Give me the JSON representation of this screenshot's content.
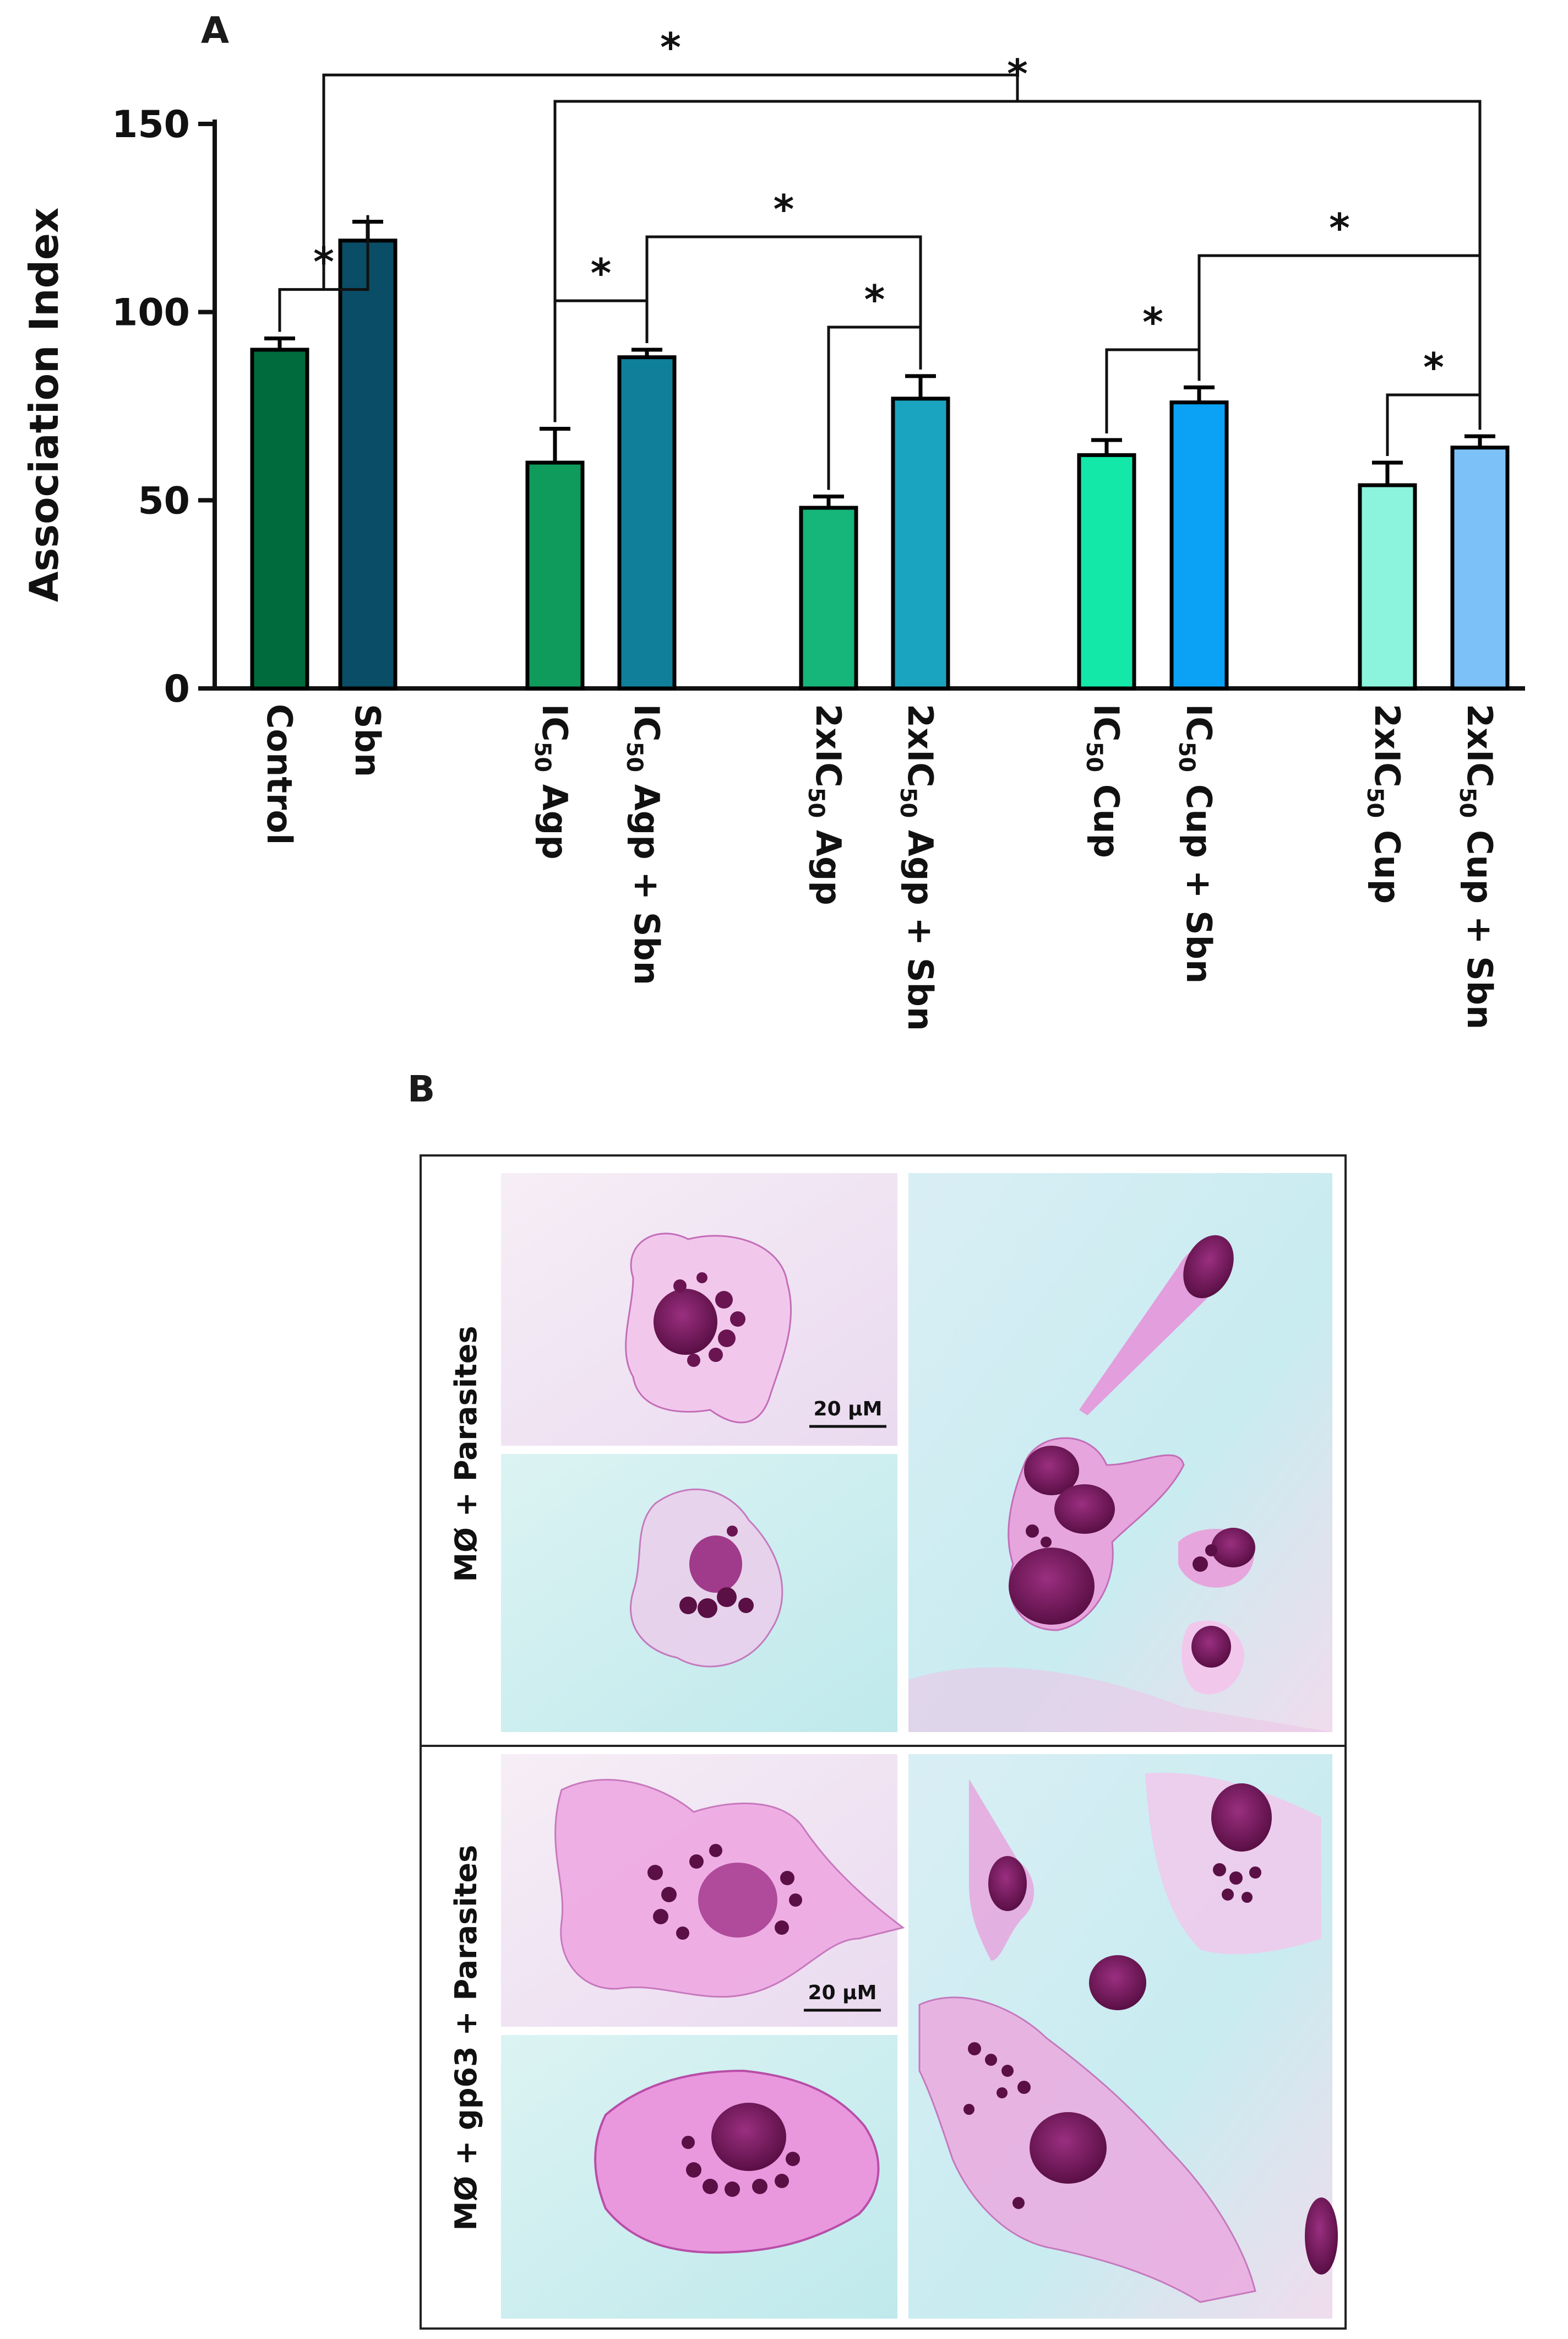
{
  "chart_data": {
    "type": "bar",
    "panel_label": "A",
    "ylabel": "Association Index",
    "ylim": [
      0,
      150
    ],
    "yticks": [
      "0",
      "50",
      "100",
      "150"
    ],
    "categories": [
      {
        "base": "Control",
        "sub": "",
        "tail": ""
      },
      {
        "base": "Sbn",
        "sub": "",
        "tail": ""
      },
      {
        "base": "IC",
        "sub": "50",
        "tail": " Agp"
      },
      {
        "base": "IC",
        "sub": "50",
        "tail": " Agp + Sbn"
      },
      {
        "base": "2xIC",
        "sub": "50",
        "tail": " Agp"
      },
      {
        "base": "2xIC",
        "sub": "50",
        "tail": " Agp + Sbn"
      },
      {
        "base": "IC",
        "sub": "50",
        "tail": " Cup"
      },
      {
        "base": "IC",
        "sub": "50",
        "tail": " Cup + Sbn"
      },
      {
        "base": "2xIC",
        "sub": "50",
        "tail": " Cup"
      },
      {
        "base": "2xIC",
        "sub": "50",
        "tail": " Cup + Sbn"
      }
    ],
    "values": [
      90,
      119,
      60,
      88,
      48,
      77,
      62,
      76,
      54,
      64
    ],
    "errors": [
      3,
      5,
      9,
      2,
      3,
      6,
      4,
      4,
      6,
      3
    ],
    "colors": [
      "#006b3c",
      "#0a4d66",
      "#0f9b5c",
      "#0f7f9a",
      "#16b57a",
      "#1ba4bf",
      "#14e8a8",
      "#0ba2f5",
      "#8cf3dc",
      "#7cc2f8"
    ],
    "significance_marker": "*",
    "comparisons": [
      {
        "from": 0,
        "to": 1,
        "level": 106
      },
      {
        "from": 2,
        "to": 3,
        "level": 103
      },
      {
        "from": 3,
        "to": 5,
        "level": 120
      },
      {
        "from": 4,
        "to": 5,
        "level": 96
      },
      {
        "from": 6,
        "to": 7,
        "level": 90
      },
      {
        "from": 7,
        "to": 9,
        "level": 115
      },
      {
        "from": 8,
        "to": 9,
        "level": 78
      },
      {
        "from": 2,
        "to": 9,
        "level": 156
      },
      {
        "from": "pair01",
        "to": "span29",
        "level": 163
      }
    ]
  },
  "panel_b": {
    "label": "B",
    "row_labels": [
      "MØ + Parasites",
      "MØ + gp63 + Parasites"
    ],
    "scale_bar_label": "20 μM"
  },
  "colors": {
    "bar_stroke": "#000000",
    "micro_bg_cyan": "#cfeef0",
    "micro_bg_pink": "#f4e4f2",
    "stain_light": "#d77fc8",
    "stain_dark": "#6a1452"
  }
}
